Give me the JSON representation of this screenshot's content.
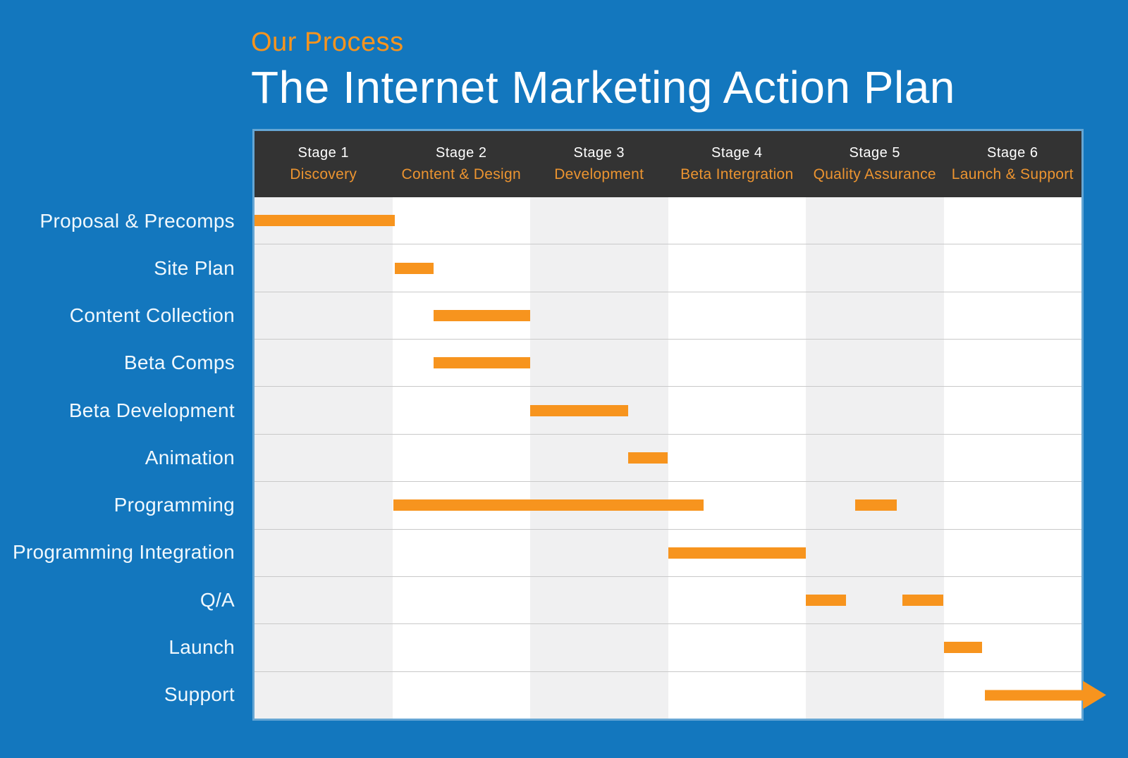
{
  "header": {
    "eyebrow": "Our Process",
    "title": "The Internet Marketing Action Plan"
  },
  "chart_data": {
    "type": "gantt",
    "subtitle": "Our Process",
    "title": "The Internet Marketing Action Plan",
    "x_axis": {
      "unit": "stage",
      "min": 0,
      "max": 6,
      "grid": "alternating-column-stripes",
      "gridlines": "horizontal-row-separators"
    },
    "stages": [
      {
        "stage": "Stage 1",
        "phase": "Discovery"
      },
      {
        "stage": "Stage 2",
        "phase": "Content & Design"
      },
      {
        "stage": "Stage 3",
        "phase": "Development"
      },
      {
        "stage": "Stage 4",
        "phase": "Beta Intergration"
      },
      {
        "stage": "Stage 5",
        "phase": "Quality Assurance"
      },
      {
        "stage": "Stage 6",
        "phase": "Launch & Support"
      }
    ],
    "rows": [
      {
        "task": "Proposal & Precomps",
        "bars": [
          {
            "start": 0.0,
            "end": 1.02
          }
        ]
      },
      {
        "task": "Site Plan",
        "bars": [
          {
            "start": 1.02,
            "end": 1.3
          }
        ]
      },
      {
        "task": "Content Collection",
        "bars": [
          {
            "start": 1.3,
            "end": 2.0
          }
        ]
      },
      {
        "task": "Beta Comps",
        "bars": [
          {
            "start": 1.3,
            "end": 2.0
          }
        ]
      },
      {
        "task": "Beta Development",
        "bars": [
          {
            "start": 2.0,
            "end": 2.71
          }
        ]
      },
      {
        "task": "Animation",
        "bars": [
          {
            "start": 2.71,
            "end": 3.0
          }
        ]
      },
      {
        "task": "Programming",
        "bars": [
          {
            "start": 1.01,
            "end": 3.26
          },
          {
            "start": 4.36,
            "end": 4.66
          }
        ]
      },
      {
        "task": "Programming Integration",
        "bars": [
          {
            "start": 3.0,
            "end": 4.0
          }
        ]
      },
      {
        "task": "Q/A",
        "bars": [
          {
            "start": 4.0,
            "end": 4.29
          },
          {
            "start": 4.7,
            "end": 5.0
          }
        ]
      },
      {
        "task": "Launch",
        "bars": [
          {
            "start": 5.0,
            "end": 5.28
          }
        ]
      },
      {
        "task": "Support",
        "bars": [
          {
            "start": 5.3,
            "end": 6.01,
            "arrow_head": true
          }
        ]
      }
    ],
    "colors": {
      "background": "#1377BE",
      "accent": "#F7941E",
      "bar": "#F7941E",
      "header_bg": "#333333",
      "stage_text": "#FFFFFF",
      "phase_text": "#EC9430",
      "task_text": "#F0F8FD",
      "stripe": "#F0F0F1",
      "grid_line": "#C9C9C9"
    }
  }
}
